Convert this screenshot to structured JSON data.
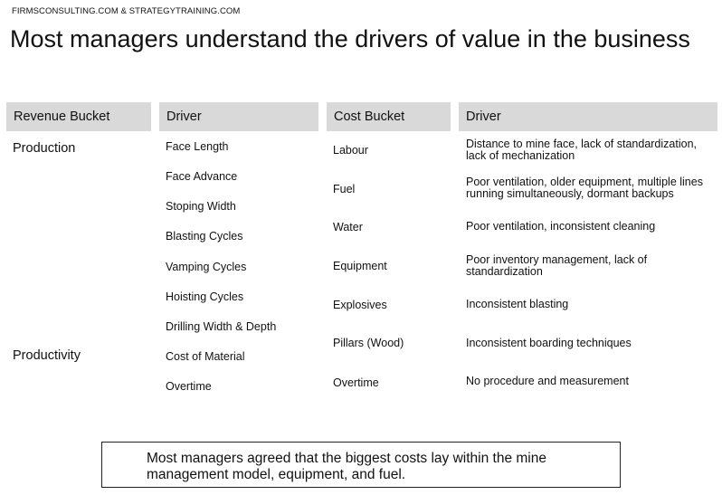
{
  "source": "FIRMSCONSULTING.COM & STRATEGYTRAINING.COM",
  "title": "Most managers understand the drivers of value in the business",
  "headers": {
    "revenue_bucket": "Revenue Bucket",
    "revenue_driver": "Driver",
    "cost_bucket": "Cost Bucket",
    "cost_driver": "Driver"
  },
  "revenue_buckets": [
    "Production",
    "Productivity"
  ],
  "revenue_drivers": [
    "Face Length",
    "Face Advance",
    "Stoping Width",
    "Blasting Cycles",
    "Vamping Cycles",
    "Hoisting Cycles",
    "Drilling Width & Depth",
    "Cost of Material",
    "Overtime"
  ],
  "cost_rows": [
    {
      "bucket": "Labour",
      "driver": "Distance to mine face, lack of standardization, lack of mechanization"
    },
    {
      "bucket": "Fuel",
      "driver": "Poor ventilation, older equipment, multiple lines running simultaneously, dormant backups"
    },
    {
      "bucket": "Water",
      "driver": "Poor ventilation, inconsistent cleaning"
    },
    {
      "bucket": "Equipment",
      "driver": "Poor inventory management, lack of standardization"
    },
    {
      "bucket": "Explosives",
      "driver": "Inconsistent blasting"
    },
    {
      "bucket": "Pillars (Wood)",
      "driver": "Inconsistent boarding techniques"
    },
    {
      "bucket": "Overtime",
      "driver": "No procedure and measurement"
    }
  ],
  "note": "Most managers agreed that the biggest costs lay within the mine management model, equipment, and fuel."
}
